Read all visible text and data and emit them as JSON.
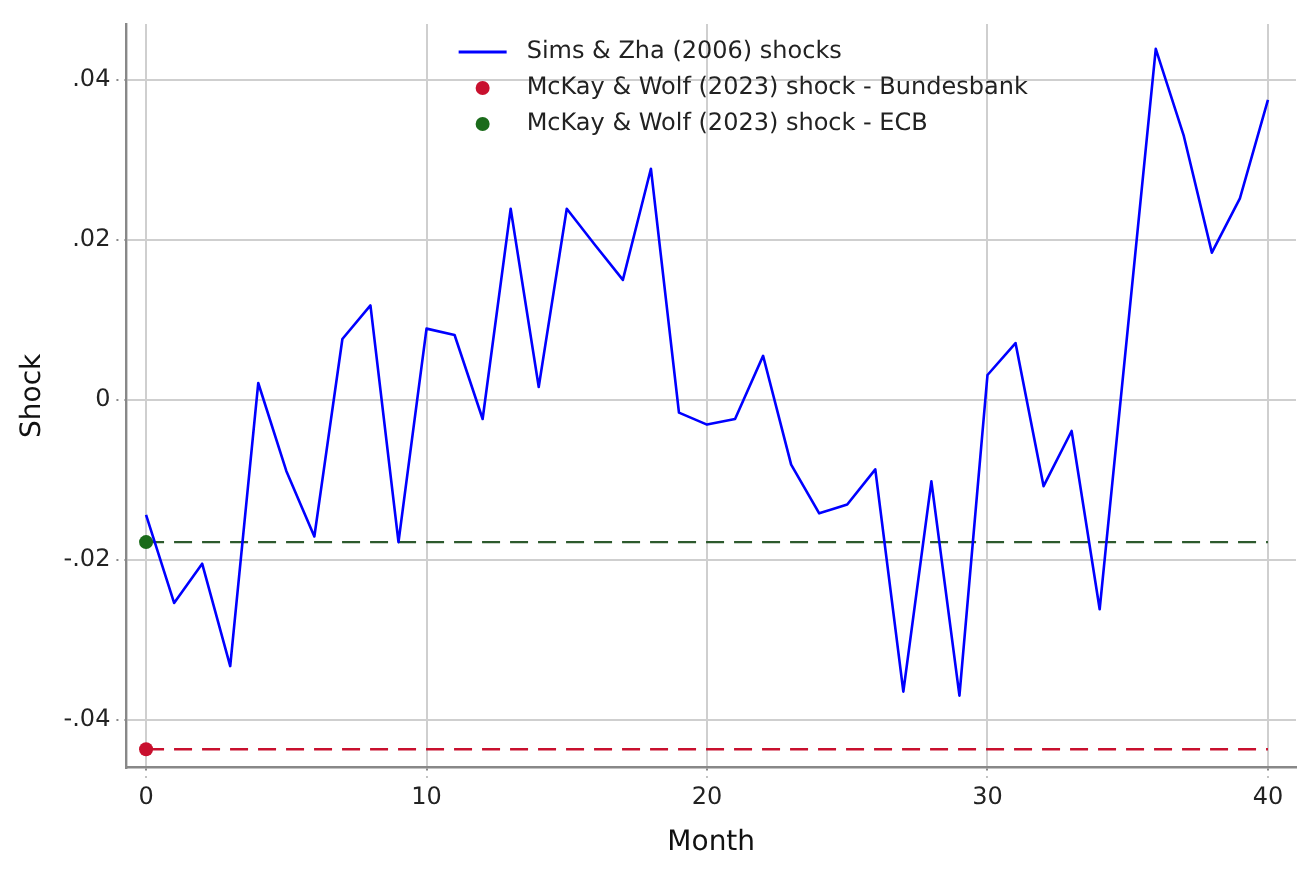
{
  "chart_data": {
    "type": "line",
    "xlabel": "Month",
    "ylabel": "Shock",
    "xlim": [
      -0.7,
      41
    ],
    "xticks": [
      0,
      10,
      20,
      30,
      40
    ],
    "ylim": [
      -0.046,
      0.047
    ],
    "yticks": [
      {
        "value": -0.04,
        "label": "-.04"
      },
      {
        "value": -0.02,
        "label": "-.02"
      },
      {
        "value": 0,
        "label": "0"
      },
      {
        "value": 0.02,
        "label": ".02"
      },
      {
        "value": 0.04,
        "label": ".04"
      }
    ],
    "grid": true,
    "legend": "top",
    "series": [
      {
        "name": "Sims & Zha (2006) shocks",
        "color": "#0000ff",
        "marker": "none",
        "x": [
          0,
          1,
          2,
          3,
          4,
          5,
          6,
          7,
          8,
          9,
          10,
          11,
          12,
          13,
          14,
          15,
          16,
          17,
          18,
          19,
          20,
          21,
          22,
          23,
          24,
          25,
          26,
          27,
          28,
          29,
          30,
          31,
          32,
          33,
          34,
          35,
          36,
          37,
          38,
          39,
          40
        ],
        "values": [
          -0.0144,
          -0.0254,
          -0.0205,
          -0.0333,
          0.0021,
          -0.0089,
          -0.0171,
          0.0076,
          0.0118,
          -0.0178,
          0.0089,
          0.0081,
          -0.0024,
          0.0239,
          0.0016,
          0.0239,
          0.0194,
          0.015,
          0.0289,
          -0.0016,
          -0.0031,
          -0.0024,
          0.0055,
          -0.0081,
          -0.0142,
          -0.0131,
          -0.0087,
          -0.0365,
          -0.0102,
          -0.037,
          0.0031,
          0.0071,
          -0.0108,
          -0.0039,
          -0.0262,
          0.0088,
          0.0439,
          0.033,
          0.0184,
          0.0252,
          0.0375
        ]
      },
      {
        "name": "McKay & Wolf (2023) shock - Bundesbank",
        "color": "#c8102e",
        "type": "scatter",
        "marker": "circle",
        "x": [
          0
        ],
        "values": [
          -0.0437
        ]
      },
      {
        "name": "McKay & Wolf (2023) shock - ECB",
        "color": "#1a6b1a",
        "type": "scatter",
        "marker": "circle",
        "x": [
          0
        ],
        "values": [
          -0.0178
        ]
      }
    ],
    "ref_lines": [
      {
        "axis": "y",
        "value": -0.0437,
        "color": "#c8102e",
        "line_style": "dashed"
      },
      {
        "axis": "y",
        "value": -0.0178,
        "color": "#2d5a2d",
        "line_style": "dashed"
      }
    ]
  }
}
